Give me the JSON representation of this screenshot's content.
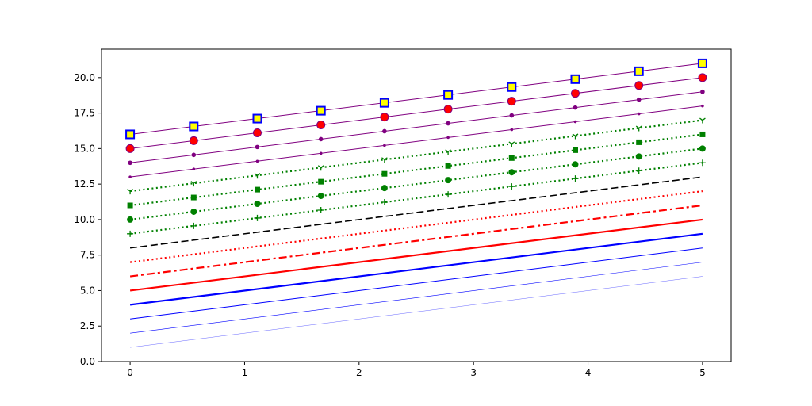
{
  "chart_data": {
    "type": "line",
    "title": "",
    "xlabel": "",
    "ylabel": "",
    "xlim": [
      -0.25,
      5.25
    ],
    "ylim": [
      0,
      22.0
    ],
    "grid": false,
    "x": [
      0,
      0.5556,
      1.1111,
      1.6667,
      2.2222,
      2.7778,
      3.3333,
      3.8889,
      4.4444,
      5.0
    ],
    "x_ticks": [
      0,
      1,
      2,
      3,
      4,
      5
    ],
    "x_tick_labels": [
      "0",
      "1",
      "2",
      "3",
      "4",
      "5"
    ],
    "y_ticks": [
      0,
      2.5,
      5,
      7.5,
      10,
      12.5,
      15,
      17.5,
      20
    ],
    "y_tick_labels": [
      "0.0",
      "2.5",
      "5.0",
      "7.5",
      "10.0",
      "12.5",
      "15.0",
      "17.5",
      "20.0"
    ],
    "series": [
      {
        "intercept": 1,
        "color": "#0000ff",
        "width": 0.3,
        "dash": "solid",
        "marker": "none"
      },
      {
        "intercept": 2,
        "color": "#0000ff",
        "width": 0.6,
        "dash": "solid",
        "marker": "none"
      },
      {
        "intercept": 3,
        "color": "#0000ff",
        "width": 1.0,
        "dash": "solid",
        "marker": "none"
      },
      {
        "intercept": 4,
        "color": "#0000ff",
        "width": 2.2,
        "dash": "solid",
        "marker": "none"
      },
      {
        "intercept": 5,
        "color": "#ff0000",
        "width": 2.2,
        "dash": "solid",
        "marker": "none"
      },
      {
        "intercept": 6,
        "color": "#ff0000",
        "width": 2.2,
        "dash": "dashdot",
        "marker": "none"
      },
      {
        "intercept": 7,
        "color": "#ff0000",
        "width": 2.2,
        "dash": "dotted",
        "marker": "none"
      },
      {
        "intercept": 8,
        "color": "#000000",
        "width": 1.6,
        "dash": "dashed",
        "marker": "none"
      },
      {
        "intercept": 9,
        "color": "#008000",
        "width": 2.2,
        "dash": "dotted",
        "marker": "plus"
      },
      {
        "intercept": 10,
        "color": "#008000",
        "width": 2.2,
        "dash": "dotted",
        "marker": "circle"
      },
      {
        "intercept": 11,
        "color": "#008000",
        "width": 2.2,
        "dash": "dotted",
        "marker": "square"
      },
      {
        "intercept": 12,
        "color": "#008000",
        "width": 2.2,
        "dash": "dotted",
        "marker": "tri-down"
      },
      {
        "intercept": 13,
        "color": "#800080",
        "width": 1.0,
        "dash": "solid",
        "marker": "point-small"
      },
      {
        "intercept": 14,
        "color": "#800080",
        "width": 1.0,
        "dash": "solid",
        "marker": "circle-small"
      },
      {
        "intercept": 15,
        "color": "#800080",
        "width": 1.0,
        "dash": "solid",
        "marker": "circle-red"
      },
      {
        "intercept": 16,
        "color": "#800080",
        "width": 1.0,
        "dash": "solid",
        "marker": "square-yellow"
      }
    ],
    "colors": {
      "marker_red_fill": "#ff0000",
      "marker_red_edge": "#800080",
      "marker_yellow_fill": "#ffff00",
      "marker_blue_edge": "#0000ff"
    }
  }
}
